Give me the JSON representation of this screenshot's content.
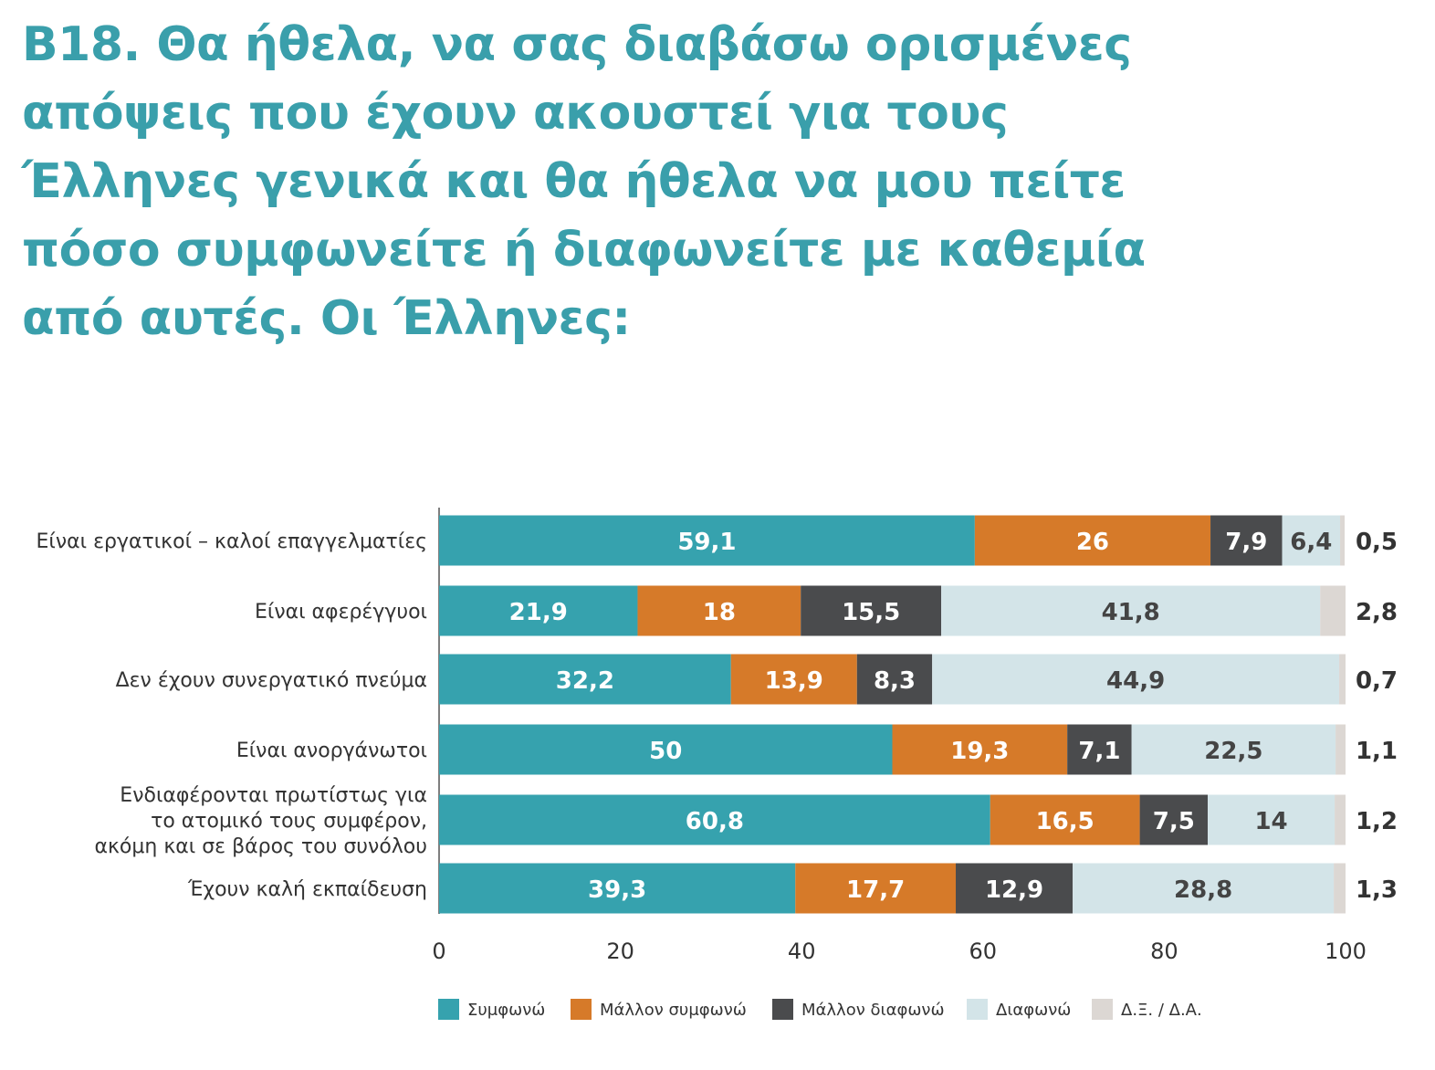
{
  "chart_data": {
    "type": "bar",
    "orientation": "horizontal-stacked",
    "title_lines": [
      "B18. Θα ήθελα, να σας διαβάσω ορισμένες",
      "απόψεις που έχουν ακουστεί για τους",
      "Έλληνες γενικά και θα ήθελα να μου πείτε",
      "πόσο συμφωνείτε ή διαφωνείτε με καθεμία",
      "από αυτές. Οι Έλληνες:"
    ],
    "categories": [
      [
        "Είναι εργατικοί – καλοί επαγγελματίες"
      ],
      [
        "Είναι αφερέγγυοι"
      ],
      [
        "Δεν έχουν συνεργατικό πνεύμα"
      ],
      [
        "Είναι ανοργάνωτοι"
      ],
      [
        "Ενδιαφέρονται πρωτίστως για",
        "το ατομικό τους συμφέρον,",
        "ακόμη και σε βάρος του συνόλου"
      ],
      [
        "Έχουν καλή εκπαίδευση"
      ]
    ],
    "series": [
      {
        "name": "Συμφωνώ",
        "color": "#36a2ae",
        "label_color": "#ffffff",
        "values": [
          59.1,
          21.9,
          32.2,
          50,
          60.8,
          39.3
        ],
        "labels": [
          "59,1",
          "21,9",
          "32,2",
          "50",
          "60,8",
          "39,3"
        ]
      },
      {
        "name": "Μάλλον συμφωνώ",
        "color": "#d67a29",
        "label_color": "#ffffff",
        "values": [
          26,
          18,
          13.9,
          19.3,
          16.5,
          17.7
        ],
        "labels": [
          "26",
          "18",
          "13,9",
          "19,3",
          "16,5",
          "17,7"
        ]
      },
      {
        "name": "Μάλλον διαφωνώ",
        "color": "#4a4b4d",
        "label_color": "#ffffff",
        "values": [
          7.9,
          15.5,
          8.3,
          7.1,
          7.5,
          12.9
        ],
        "labels": [
          "7,9",
          "15,5",
          "8,3",
          "7,1",
          "7,5",
          "12,9"
        ]
      },
      {
        "name": "Διαφωνώ",
        "color": "#d3e4e8",
        "label_color": "#444444",
        "values": [
          6.4,
          41.8,
          44.9,
          22.5,
          14,
          28.8
        ],
        "labels": [
          "6,4",
          "41,8",
          "44,9",
          "22,5",
          "14",
          "28,8"
        ]
      },
      {
        "name": "Δ.Ξ. / Δ.Α.",
        "color": "#dcd7d3",
        "label_color": "#333333",
        "values": [
          0.5,
          2.8,
          0.7,
          1.1,
          1.2,
          1.3
        ],
        "labels": [
          "0,5",
          "2,8",
          "0,7",
          "1,1",
          "1,2",
          "1,3"
        ]
      }
    ],
    "xlim": [
      0,
      100
    ],
    "xticks": [
      "0",
      "20",
      "40",
      "60",
      "80",
      "100"
    ],
    "legend_position": "bottom",
    "grid": false
  }
}
